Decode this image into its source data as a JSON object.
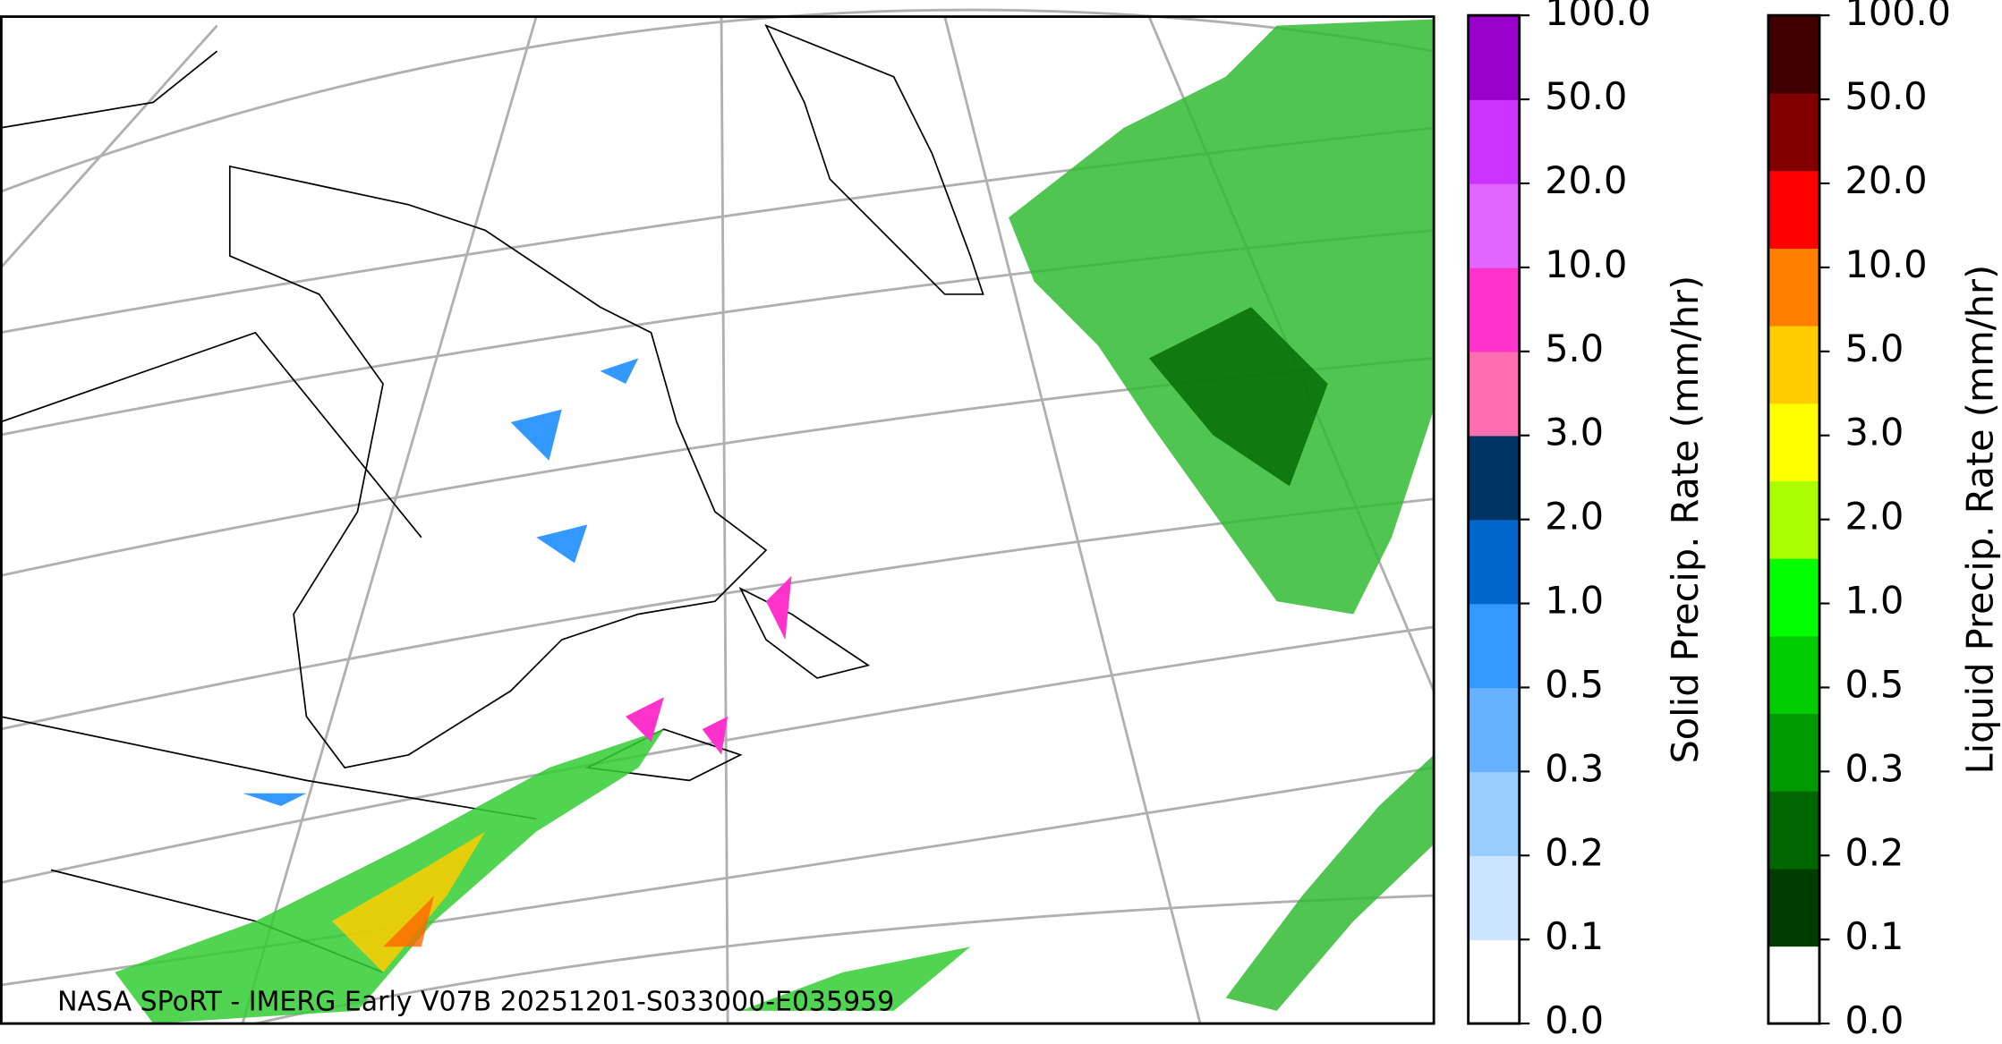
{
  "caption": "NASA SPoRT - IMERG Early V07B 20251201-S033000-E035959",
  "colorbars": [
    {
      "label": "Solid Precip. Rate (mm/hr)",
      "colors": [
        "#ffffff",
        "#cce5ff",
        "#99ccff",
        "#66b2ff",
        "#3399ff",
        "#0066cc",
        "#003366",
        "#ff6eb0",
        "#ff33cc",
        "#e066ff",
        "#cc33ff",
        "#9900cc"
      ],
      "ticks": [
        {
          "value": 0,
          "label": "0.0"
        },
        {
          "value": 0.1,
          "label": "0.1"
        },
        {
          "value": 0.2,
          "label": "0.2"
        },
        {
          "value": 0.3,
          "label": "0.3"
        },
        {
          "value": 0.5,
          "label": "0.5"
        },
        {
          "value": 1,
          "label": "1.0"
        },
        {
          "value": 2,
          "label": "2.0"
        },
        {
          "value": 3,
          "label": "3.0"
        },
        {
          "value": 5,
          "label": "5.0"
        },
        {
          "value": 10,
          "label": "10.0"
        },
        {
          "value": 20,
          "label": "20.0"
        },
        {
          "value": 50,
          "label": "50.0"
        },
        {
          "value": 100,
          "label": "100.0"
        }
      ]
    },
    {
      "label": "Liquid Precip. Rate (mm/hr)",
      "colors": [
        "#ffffff",
        "#003d00",
        "#006600",
        "#009900",
        "#00cc00",
        "#00ff00",
        "#aaff00",
        "#ffff00",
        "#ffcc00",
        "#ff8000",
        "#ff0000",
        "#800000",
        "#400000"
      ],
      "ticks": [
        {
          "value": 0,
          "label": "0.0"
        },
        {
          "value": 0.1,
          "label": "0.1"
        },
        {
          "value": 0.2,
          "label": "0.2"
        },
        {
          "value": 0.3,
          "label": "0.3"
        },
        {
          "value": 0.5,
          "label": "0.5"
        },
        {
          "value": 1,
          "label": "1.0"
        },
        {
          "value": 2,
          "label": "2.0"
        },
        {
          "value": 3,
          "label": "3.0"
        },
        {
          "value": 5,
          "label": "5.0"
        },
        {
          "value": 10,
          "label": "10.0"
        },
        {
          "value": 20,
          "label": "20.0"
        },
        {
          "value": 50,
          "label": "50.0"
        },
        {
          "value": 100,
          "label": "100.0"
        }
      ]
    }
  ]
}
